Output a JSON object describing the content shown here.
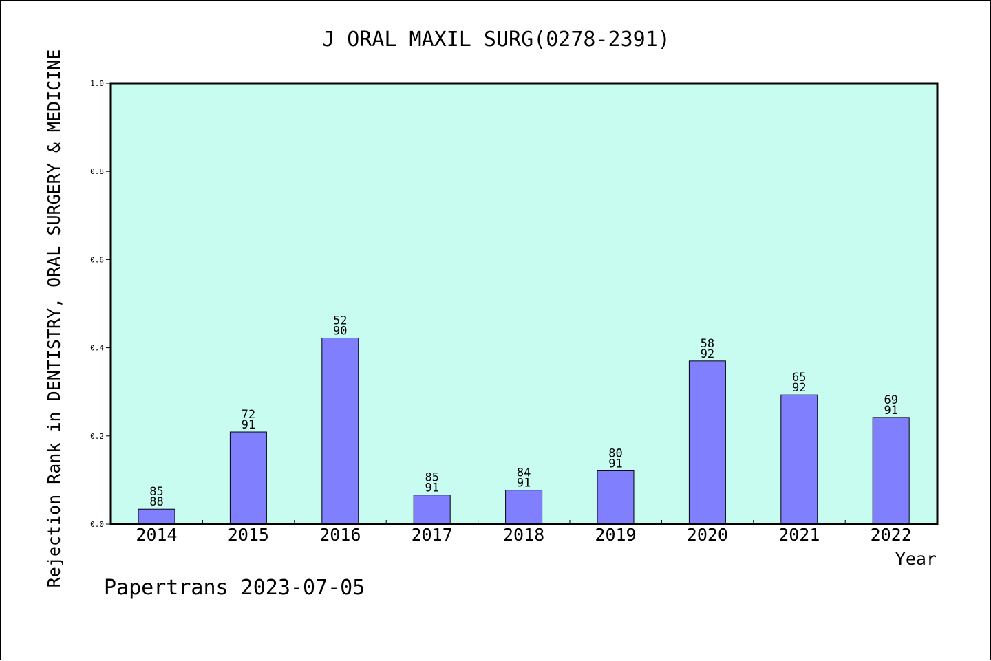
{
  "chart_data": {
    "type": "bar",
    "title": "J ORAL MAXIL SURG(0278-2391)",
    "xlabel": "Year",
    "ylabel": "Rejection Rank in DENTISTRY, ORAL SURGERY & MEDICINE",
    "ylim": [
      0,
      1.0
    ],
    "yticks": [
      "0.0",
      "0.2",
      "0.4",
      "0.6",
      "0.8",
      "1.0"
    ],
    "categories": [
      "2014",
      "2015",
      "2016",
      "2017",
      "2018",
      "2019",
      "2020",
      "2021",
      "2022"
    ],
    "values": [
      0.034,
      0.209,
      0.422,
      0.066,
      0.077,
      0.121,
      0.37,
      0.293,
      0.242
    ],
    "rank": [
      "85",
      "72",
      "52",
      "85",
      "84",
      "80",
      "58",
      "65",
      "69"
    ],
    "total": [
      "88",
      "91",
      "90",
      "91",
      "91",
      "91",
      "92",
      "92",
      "91"
    ],
    "bar_color": "#8080ff",
    "plot_background": "#c8fcf0",
    "grid": false
  },
  "footer": "Papertrans 2023-07-05"
}
